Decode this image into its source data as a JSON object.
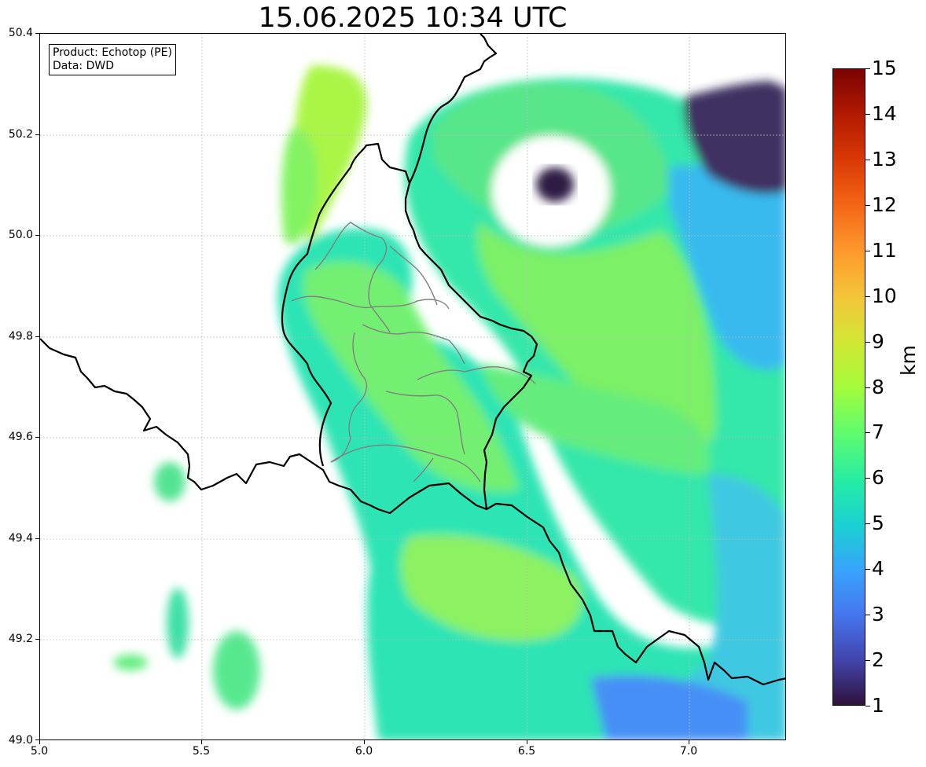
{
  "title": "15.06.2025 10:34 UTC",
  "info_box": {
    "product_line": "Product: Echotop (PE)",
    "data_line": "Data: DWD"
  },
  "axes": {
    "x_ticks": [
      "5.0",
      "5.5",
      "6.0",
      "6.5",
      "7.0"
    ],
    "y_ticks": [
      "50.4",
      "50.2",
      "50.0",
      "49.8",
      "49.6",
      "49.4",
      "49.2",
      "49.0"
    ],
    "x_range": [
      5.0,
      7.3
    ],
    "y_range": [
      49.0,
      50.4
    ],
    "grid": true
  },
  "colorbar": {
    "ticks": [
      "15",
      "14",
      "13",
      "12",
      "11",
      "10",
      "9",
      "8",
      "7",
      "6",
      "5",
      "4",
      "3",
      "2",
      "1"
    ],
    "unit": "km",
    "range": [
      1,
      15
    ],
    "colormap": "turbo"
  },
  "colors": {
    "country_border": "#000000",
    "district_border": "#808080",
    "grid": "#bbbbbb"
  }
}
